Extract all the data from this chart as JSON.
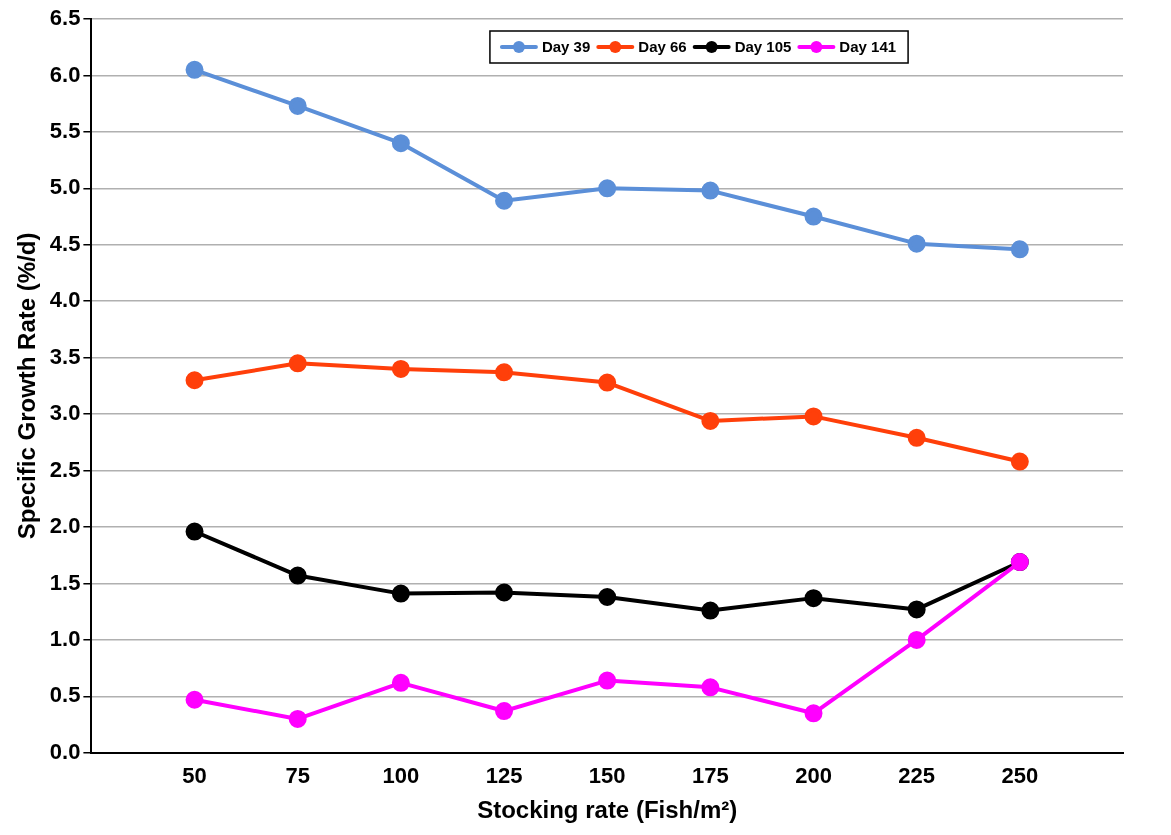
{
  "chart_data": {
    "type": "line",
    "xlabel": "Stocking rate (Fish/m²)",
    "ylabel": "Specific Growth Rate (%/d)",
    "x": [
      50,
      75,
      100,
      125,
      150,
      175,
      200,
      225,
      250
    ],
    "xlim": [
      25,
      275
    ],
    "xticks": [
      50,
      75,
      100,
      125,
      150,
      175,
      200,
      225,
      250
    ],
    "ylim": [
      0,
      6.5
    ],
    "yticks": [
      {
        "value": 0,
        "label": "0.0"
      },
      {
        "value": 0.5,
        "label": "0.5"
      },
      {
        "value": 1,
        "label": "1.0"
      },
      {
        "value": 1.5,
        "label": "1.5"
      },
      {
        "value": 2,
        "label": "2.0"
      },
      {
        "value": 2.5,
        "label": "2.5"
      },
      {
        "value": 3,
        "label": "3.0"
      },
      {
        "value": 3.5,
        "label": "3.5"
      },
      {
        "value": 4,
        "label": "4.0"
      },
      {
        "value": 4.5,
        "label": "4.5"
      },
      {
        "value": 5,
        "label": "5.0"
      },
      {
        "value": 5.5,
        "label": "5.5"
      },
      {
        "value": 6,
        "label": "6.0"
      },
      {
        "value": 6.5,
        "label": "6.5"
      }
    ],
    "grid": "y",
    "legend": "top",
    "marker": "circle",
    "line_style": "solid",
    "series": [
      {
        "name": "Day 39",
        "color": "#5b8fd8",
        "values": [
          6.05,
          5.73,
          5.4,
          4.89,
          5.0,
          4.98,
          4.75,
          4.51,
          4.46
        ]
      },
      {
        "name": "Day 66",
        "color": "#ff3f0a",
        "values": [
          3.3,
          3.45,
          3.4,
          3.37,
          3.28,
          2.94,
          2.98,
          2.79,
          2.58
        ]
      },
      {
        "name": "Day 105",
        "color": "#000000",
        "values": [
          1.96,
          1.57,
          1.41,
          1.42,
          1.38,
          1.26,
          1.37,
          1.27,
          1.69
        ]
      },
      {
        "name": "Day 141",
        "color": "#ff00ff",
        "values": [
          0.47,
          0.3,
          0.62,
          0.37,
          0.64,
          0.58,
          0.35,
          1.0,
          1.69
        ]
      }
    ]
  }
}
